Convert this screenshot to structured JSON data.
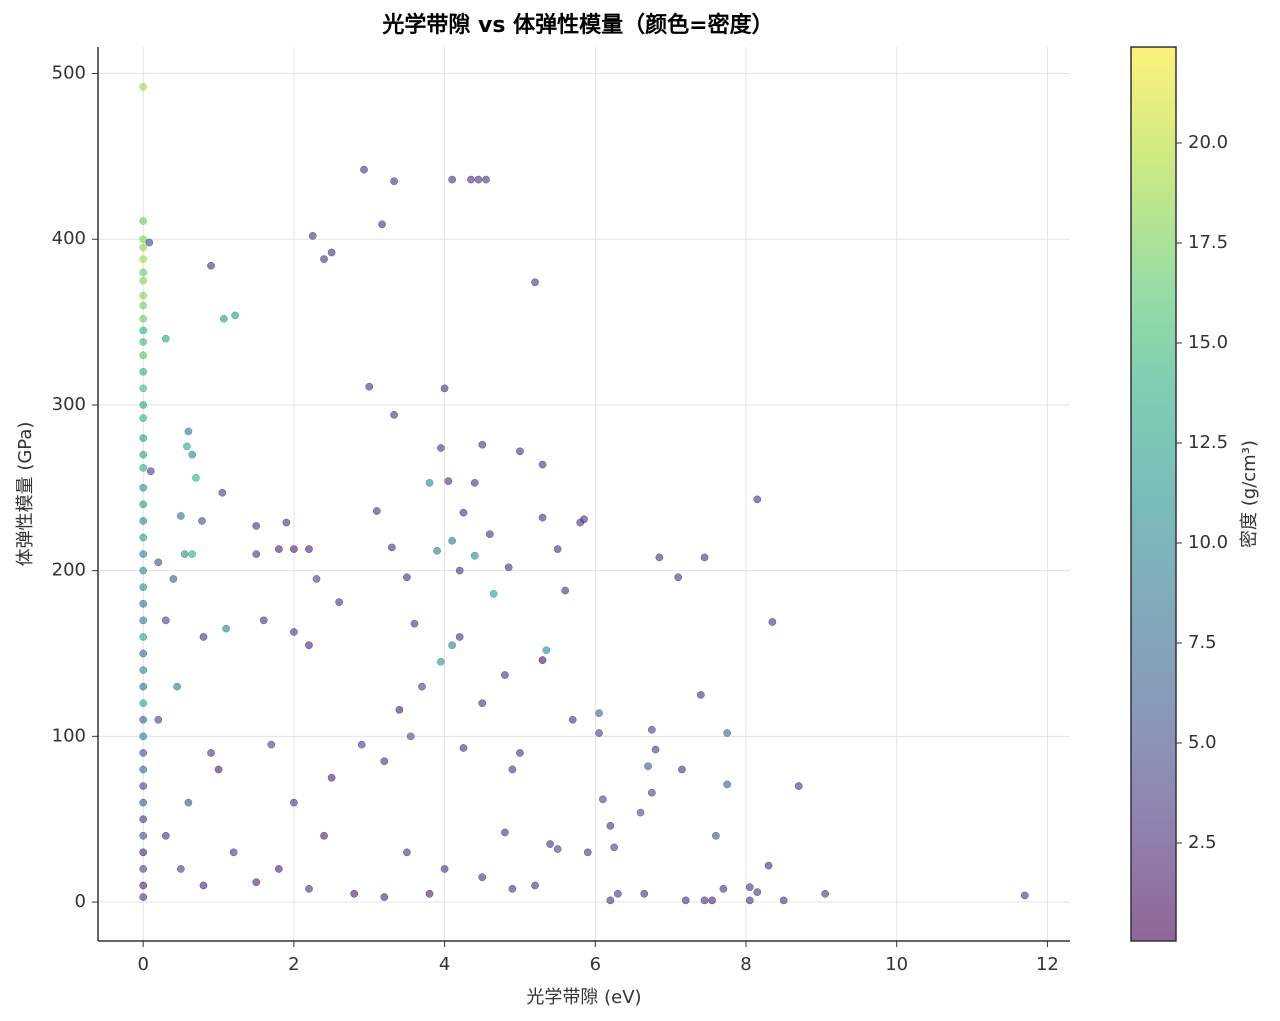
{
  "chart_data": {
    "type": "scatter",
    "title": "光学带隙 vs 体弹性模量（颜色=密度）",
    "x_label": "光学带隙 (eV)",
    "y_label": "体弹性模量 (GPa)",
    "colorbar_label": "密度 (g/cm³)",
    "colormap": "viridis",
    "grid": true,
    "xlim": [
      -0.6,
      12.3
    ],
    "ylim": [
      -23.5,
      516
    ],
    "clim": [
      0.05,
      22.4
    ],
    "xticks": [
      0,
      2,
      4,
      6,
      8,
      10,
      12
    ],
    "yticks": [
      0,
      100,
      200,
      300,
      400,
      500
    ],
    "cticks": [
      2.5,
      {
        "value": 5,
        "label": "5.0"
      },
      7.5,
      {
        "value": 10,
        "label": "10.0"
      },
      12.5,
      {
        "value": 15,
        "label": "15.0"
      },
      17.5,
      {
        "value": 20,
        "label": "20.0"
      }
    ],
    "x": [
      0,
      0,
      0,
      0,
      0,
      0,
      0,
      0,
      0,
      0,
      0,
      0,
      0,
      0,
      0,
      0,
      0,
      0,
      0,
      0,
      0,
      0,
      0,
      0,
      0,
      0,
      0,
      0,
      0,
      0,
      0,
      0,
      0,
      0,
      0,
      0,
      0,
      0,
      0,
      0,
      0,
      0,
      0,
      0,
      0,
      0,
      0.08,
      0.3,
      0.9,
      1.07,
      1.22,
      0.6,
      0.58,
      0.65,
      0.7,
      0.5,
      0.78,
      1.05,
      0.1,
      0.2,
      0.4,
      0.55,
      0.65,
      0.3,
      0.8,
      0.45,
      0.2,
      0.9,
      0.6,
      0.3,
      0.5,
      0.8,
      1.2,
      1.1,
      1.0,
      1.5,
      1.5,
      1.8,
      1.9,
      2.0,
      2.2,
      2.25,
      2.4,
      2.5,
      2.3,
      2.6,
      2.0,
      1.6,
      2.2,
      1.7,
      2.0,
      2.5,
      2.9,
      2.4,
      1.8,
      2.8,
      2.2,
      1.5,
      2.93,
      3.17,
      3.33,
      4.1,
      4.35,
      4.45,
      4.55,
      5.2,
      3.0,
      4.0,
      3.33,
      3.95,
      4.5,
      5.0,
      5.3,
      3.8,
      4.05,
      4.4,
      3.1,
      4.25,
      5.3,
      5.8,
      5.85,
      4.6,
      4.1,
      3.3,
      3.9,
      4.4,
      5.5,
      4.65,
      5.6,
      3.5,
      4.2,
      4.85,
      3.6,
      4.2,
      3.95,
      4.1,
      5.35,
      5.3,
      3.7,
      4.5,
      4.8,
      5.7,
      3.4,
      3.2,
      3.55,
      4.25,
      5.0,
      4.9,
      4.8,
      5.4,
      5.5,
      3.5,
      4.0,
      4.5,
      5.2,
      3.8,
      4.9,
      3.2,
      6.05,
      6.05,
      6.1,
      6.2,
      6.25,
      5.9,
      6.3,
      6.2,
      6.65,
      6.75,
      6.8,
      6.7,
      6.75,
      6.6,
      6.85,
      7.1,
      7.45,
      7.4,
      7.15,
      7.6,
      7.75,
      7.75,
      7.2,
      7.45,
      7.55,
      7.7,
      8.05,
      8.15,
      8.3,
      8.15,
      8.35,
      8.7,
      8.5,
      9.05,
      11.7,
      8.05
    ],
    "values": [
      492,
      411,
      400,
      395,
      388,
      380,
      375,
      366,
      360,
      352,
      345,
      338,
      330,
      320,
      310,
      300,
      292,
      280,
      270,
      262,
      250,
      240,
      230,
      220,
      210,
      200,
      190,
      180,
      170,
      160,
      150,
      140,
      130,
      120,
      110,
      100,
      90,
      80,
      70,
      60,
      50,
      40,
      30,
      20,
      10,
      3,
      398,
      340,
      384,
      352,
      354,
      284,
      275,
      270,
      256,
      233,
      230,
      247,
      260,
      205,
      195,
      210,
      210,
      170,
      160,
      130,
      110,
      90,
      60,
      40,
      20,
      10,
      30,
      165,
      80,
      227,
      210,
      213,
      229,
      213,
      213,
      402,
      388,
      392,
      195,
      181,
      163,
      170,
      155,
      95,
      60,
      75,
      95,
      40,
      20,
      5,
      8,
      12,
      442,
      409,
      435,
      436,
      436,
      436,
      436,
      374,
      311,
      310,
      294,
      274,
      276,
      272,
      264,
      253,
      254,
      253,
      236,
      235,
      232,
      229,
      231,
      222,
      218,
      214,
      212,
      209,
      213,
      186,
      188,
      196,
      200,
      202,
      168,
      160,
      145,
      155,
      152,
      146,
      130,
      120,
      137,
      110,
      116,
      85,
      100,
      93,
      90,
      80,
      42,
      35,
      32,
      30,
      20,
      15,
      10,
      5,
      8,
      3,
      102,
      114,
      62,
      46,
      33,
      30,
      5,
      1,
      5,
      104,
      92,
      82,
      66,
      54,
      208,
      196,
      208,
      125,
      80,
      40,
      102,
      71,
      1,
      1,
      1,
      8,
      9,
      6,
      22,
      243,
      169,
      70,
      1,
      5,
      4,
      1
    ],
    "density": [
      19,
      17,
      18,
      18.5,
      19,
      17,
      18,
      18,
      17.5,
      17,
      14,
      15,
      16,
      14,
      15,
      13,
      14,
      12,
      13,
      14,
      11,
      12,
      10,
      12,
      9,
      10,
      11,
      8,
      9,
      12,
      7,
      10,
      8,
      13,
      6,
      9,
      5,
      7,
      4,
      6,
      3,
      5,
      2,
      4,
      2,
      3,
      4,
      13,
      3,
      12,
      12,
      9,
      13,
      10,
      14,
      8,
      5,
      4,
      4,
      5,
      6,
      11,
      14,
      4,
      3,
      9,
      4,
      3,
      5,
      3,
      4,
      2,
      3,
      10,
      2,
      3,
      3,
      2,
      3,
      2,
      2,
      3,
      3,
      3,
      4,
      3,
      3,
      3,
      2,
      4,
      3,
      2,
      4,
      2,
      2,
      2,
      3,
      2,
      3,
      3,
      3,
      3,
      3,
      3,
      3,
      3,
      3,
      3,
      3,
      3,
      3,
      3,
      3,
      10,
      3,
      3,
      3,
      3,
      3,
      3,
      3,
      3,
      9,
      3,
      9,
      10,
      3,
      12,
      3,
      3,
      3,
      3,
      3,
      3,
      11,
      9,
      11,
      1,
      4,
      3,
      3,
      3,
      2,
      3,
      5,
      3,
      3,
      3,
      3,
      3,
      4,
      3,
      3,
      3,
      3,
      2,
      3,
      2,
      4,
      7,
      4,
      3,
      4,
      3,
      3,
      3,
      3,
      4,
      4,
      6,
      4,
      5,
      3,
      3,
      3,
      3,
      3,
      5,
      7,
      6,
      3,
      3,
      2,
      3,
      3,
      3,
      3,
      3,
      3,
      3,
      3,
      3,
      3,
      3
    ]
  }
}
